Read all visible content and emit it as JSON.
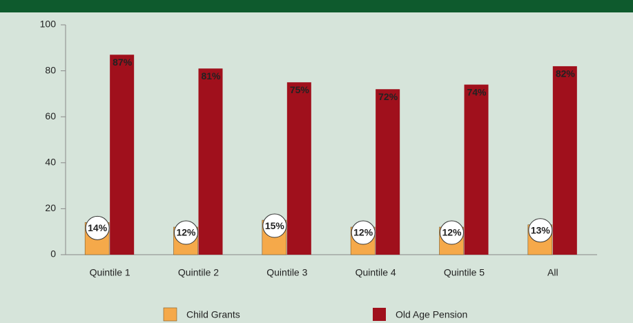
{
  "chart_data": {
    "type": "bar",
    "categories": [
      "Quintile 1",
      "Quintile 2",
      "Quintile 3",
      "Quintile 4",
      "Quintile 5",
      "All"
    ],
    "series": [
      {
        "name": "Child Grants",
        "color": "#f5a94a",
        "values": [
          14,
          12,
          15,
          12,
          12,
          13
        ],
        "value_labels": [
          "14%",
          "12%",
          "15%",
          "12%",
          "12%",
          "13%"
        ]
      },
      {
        "name": "Old Age Pension",
        "color": "#a0101c",
        "values": [
          87,
          81,
          75,
          72,
          74,
          82
        ],
        "value_labels": [
          "87%",
          "81%",
          "75%",
          "72%",
          "74%",
          "82%"
        ]
      }
    ],
    "ylim": [
      0,
      100
    ],
    "yticks": [
      0,
      20,
      40,
      60,
      80,
      100
    ],
    "grid": false,
    "legend": "bottom"
  }
}
